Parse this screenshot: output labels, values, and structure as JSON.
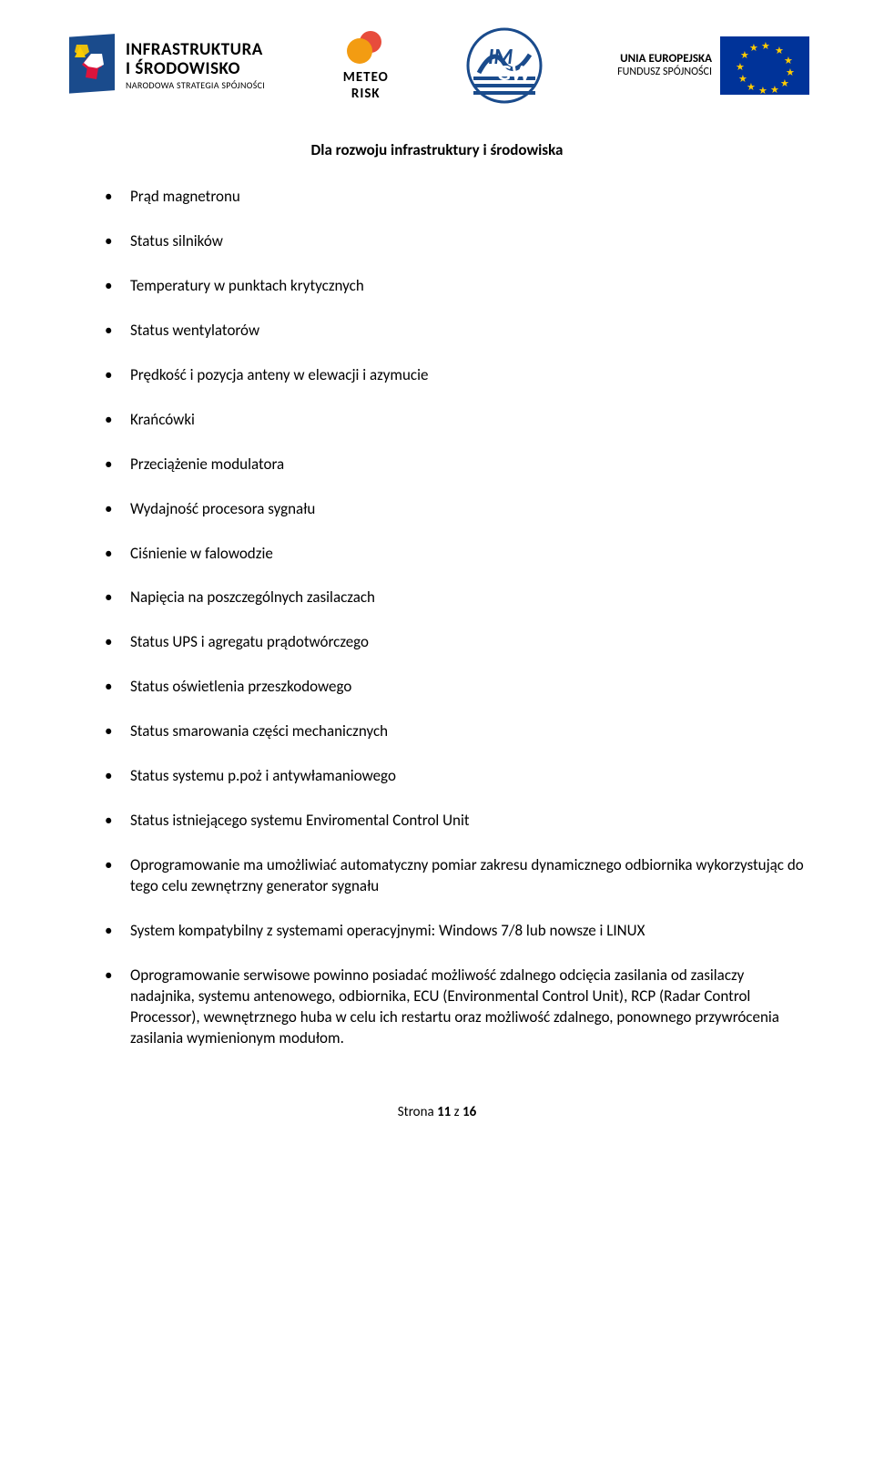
{
  "header": {
    "infra": {
      "line1": "INFRASTRUKTURA",
      "line2": "I ŚRODOWISKO",
      "sub": "NARODOWA STRATEGIA SPÓJNOŚCI"
    },
    "meteo": {
      "line1": "METEO",
      "line2": "RISK"
    },
    "imgw": {
      "text": "IMGW"
    },
    "eu": {
      "line1": "UNIA EUROPEJSKA",
      "line2": "FUNDUSZ SPÓJNOŚCI"
    }
  },
  "subtitle": "Dla rozwoju infrastruktury i środowiska",
  "bullets": [
    "Prąd magnetronu",
    "Status silników",
    "Temperatury w punktach krytycznych",
    "Status wentylatorów",
    "Prędkość i pozycja anteny w elewacji i azymucie",
    "Krańcówki",
    "Przeciążenie modulatora",
    "Wydajność procesora sygnału",
    "Ciśnienie w falowodzie",
    "Napięcia na poszczególnych zasilaczach",
    "Status UPS i agregatu prądotwórczego",
    "Status oświetlenia przeszkodowego",
    "Status smarowania części mechanicznych",
    "Status systemu p.poż i antywłamaniowego",
    "Status istniejącego systemu Enviromental Control Unit",
    "Oprogramowanie ma umożliwiać automatyczny pomiar zakresu dynamicznego odbiornika wykorzystując do tego celu zewnętrzny generator sygnału",
    "System kompatybilny z systemami operacyjnymi: Windows 7/8 lub nowsze i LINUX",
    "Oprogramowanie serwisowe powinno posiadać możliwość zdalnego odcięcia zasilania od zasilaczy nadajnika, systemu antenowego, odbiornika, ECU (Environmental Control Unit), RCP (Radar Control Processor), wewnętrznego huba w celu ich restartu oraz możliwość zdalnego, ponownego przywrócenia zasilania wymienionym modułom."
  ],
  "footer": {
    "prefix": "Strona ",
    "current": "11",
    "sep": " z ",
    "total": "16"
  },
  "colors": {
    "text": "#000000",
    "eu_blue": "#003399",
    "eu_yellow": "#ffcc00",
    "poland_red": "#dc143c",
    "meteo_orange": "#f39c12",
    "meteo_red": "#e74c3c",
    "imgw_blue": "#1a4b8c"
  }
}
